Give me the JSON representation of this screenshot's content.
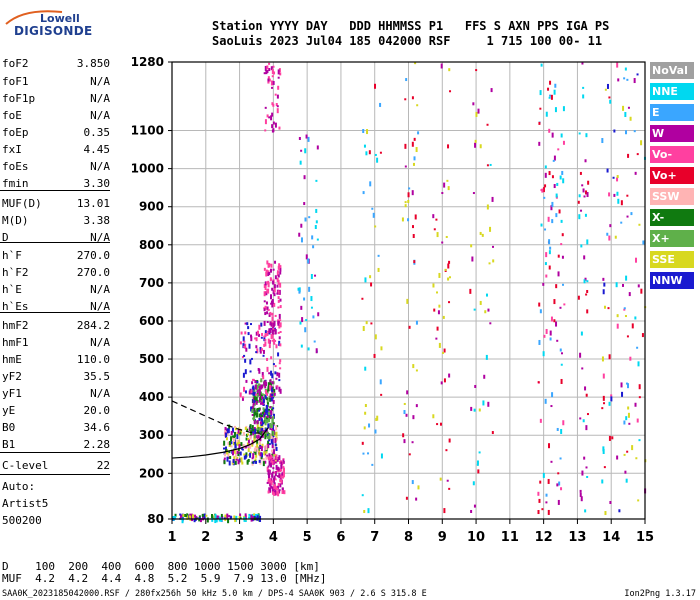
{
  "logo": {
    "top": "Lowell",
    "bottom": "DIGISONDE"
  },
  "header": {
    "line1": "Station YYYY DAY   DDD HHMMSS P1   FFS S AXN PPS IGA PS",
    "line2": "SaoLuis 2023 Jul04 185 042000 RSF     1 715 100 00- 11"
  },
  "params": [
    {
      "k": "foF2",
      "v": "3.850"
    },
    {
      "k": "foF1",
      "v": "N/A"
    },
    {
      "k": "foF1p",
      "v": "N/A"
    },
    {
      "k": "foE",
      "v": "N/A"
    },
    {
      "k": "foEp",
      "v": "0.35"
    },
    {
      "k": "fxI",
      "v": "4.45"
    },
    {
      "k": "foEs",
      "v": "N/A"
    },
    {
      "k": "fmin",
      "v": "3.30"
    },
    {
      "k": "MUF(D)",
      "v": "13.01"
    },
    {
      "k": "M(D)",
      "v": "3.38"
    },
    {
      "k": "D",
      "v": "N/A"
    },
    {
      "k": "h`F",
      "v": "270.0"
    },
    {
      "k": "h`F2",
      "v": "270.0"
    },
    {
      "k": "h`E",
      "v": "N/A"
    },
    {
      "k": "h`Es",
      "v": "N/A"
    },
    {
      "k": "hmF2",
      "v": "284.2"
    },
    {
      "k": "hmF1",
      "v": "N/A"
    },
    {
      "k": "hmE",
      "v": "110.0"
    },
    {
      "k": "yF2",
      "v": "35.5"
    },
    {
      "k": "yF1",
      "v": "N/A"
    },
    {
      "k": "yE",
      "v": "20.0"
    },
    {
      "k": "B0",
      "v": "34.6"
    },
    {
      "k": "B1",
      "v": "2.28"
    },
    {
      "k": "C-level",
      "v": "22"
    }
  ],
  "auto": {
    "line1": "Auto:",
    "line2": "Artist5",
    "line3": "500200"
  },
  "legend": [
    {
      "label": "NoVal",
      "color": "#a0a0a0"
    },
    {
      "label": "NNE",
      "color": "#00d8f0"
    },
    {
      "label": "E",
      "color": "#3aa6ff"
    },
    {
      "label": "W",
      "color": "#b000a0"
    },
    {
      "label": "Vo-",
      "color": "#ff40a0"
    },
    {
      "label": "Vo+",
      "color": "#e8002a"
    },
    {
      "label": "SSW",
      "color": "#ffb4b4"
    },
    {
      "label": "X-",
      "color": "#107a10"
    },
    {
      "label": "X+",
      "color": "#5fb04a"
    },
    {
      "label": "SSE",
      "color": "#d8d820"
    },
    {
      "label": "NNW",
      "color": "#1a1ad0"
    }
  ],
  "mufTable": {
    "dRow": "D    100  200  400  600  800 1000 1500 3000 [km]",
    "mufRow": "MUF  4.2  4.2  4.4  4.8  5.2  5.9  7.9 13.0 [MHz]"
  },
  "footer": {
    "left": "SAA0K_2023185042000.RSF / 280fx256h 50 kHz 5.0 km / DPS-4 SAA0K 903 / 2.6 S 315.8 E",
    "right": "Ion2Png 1.3.17"
  },
  "chart_data": {
    "type": "scatter",
    "title": "",
    "xlabel": "",
    "ylabel": "",
    "xlim": [
      1,
      15
    ],
    "ylim": [
      80,
      1280
    ],
    "x_ticks": [
      1,
      2,
      3,
      4,
      5,
      6,
      7,
      8,
      9,
      10,
      11,
      12,
      13,
      14,
      15
    ],
    "y_ticks": [
      80,
      200,
      300,
      400,
      500,
      600,
      700,
      800,
      900,
      1000,
      1100,
      1280
    ],
    "grid": true,
    "traces": [
      {
        "name": "",
        "style": "solid",
        "color": "#000000",
        "x": [
          1.0,
          1.5,
          2.0,
          2.5,
          3.0,
          3.3,
          3.6,
          3.85
        ],
        "y": [
          240,
          243,
          248,
          255,
          265,
          275,
          290,
          320
        ]
      },
      {
        "name": "",
        "style": "dashed",
        "color": "#000000",
        "x": [
          1.0,
          1.5,
          2.0,
          2.5,
          3.0,
          3.3,
          3.6
        ],
        "y": [
          390,
          370,
          350,
          330,
          315,
          308,
          305
        ]
      }
    ],
    "echo_clusters": [
      {
        "x": [
          2.5,
          4.1
        ],
        "y": [
          230,
          330
        ],
        "density": "high",
        "colors": [
          "#b000a0",
          "#1a1ad0",
          "#ffb4b4",
          "#d8d820",
          "#107a10"
        ]
      },
      {
        "x": [
          3.3,
          4.0
        ],
        "y": [
          300,
          450
        ],
        "density": "high",
        "colors": [
          "#b000a0",
          "#1a1ad0",
          "#107a10",
          "#5fb04a"
        ]
      },
      {
        "x": [
          3.0,
          4.2
        ],
        "y": [
          400,
          600
        ],
        "density": "medium",
        "colors": [
          "#b000a0",
          "#1a1ad0",
          "#ff40a0"
        ]
      },
      {
        "x": [
          3.7,
          4.2
        ],
        "y": [
          540,
          760
        ],
        "density": "medium",
        "colors": [
          "#b000a0",
          "#ff40a0"
        ]
      },
      {
        "x": [
          3.7,
          4.2
        ],
        "y": [
          1100,
          1280
        ],
        "density": "low",
        "colors": [
          "#b000a0",
          "#ff40a0"
        ]
      },
      {
        "x": [
          3.8,
          4.3
        ],
        "y": [
          150,
          250
        ],
        "density": "medium",
        "colors": [
          "#b000a0",
          "#ff40a0"
        ]
      },
      {
        "x": [
          4.7,
          5.3
        ],
        "y": [
          500,
          1100
        ],
        "density": "low",
        "colors": [
          "#b000a0",
          "#00d8f0",
          "#3aa6ff"
        ]
      },
      {
        "x": [
          6.6,
          7.2
        ],
        "y": [
          100,
          1280
        ],
        "density": "low",
        "colors": [
          "#d8d820",
          "#00d8f0",
          "#3aa6ff",
          "#e8002a"
        ]
      },
      {
        "x": [
          7.8,
          8.3
        ],
        "y": [
          100,
          1280
        ],
        "density": "low",
        "colors": [
          "#d8d820",
          "#b000a0",
          "#3aa6ff",
          "#e8002a"
        ]
      },
      {
        "x": [
          8.7,
          9.2
        ],
        "y": [
          100,
          1280
        ],
        "density": "low",
        "colors": [
          "#d8d820",
          "#b000a0",
          "#e8002a"
        ]
      },
      {
        "x": [
          9.8,
          10.5
        ],
        "y": [
          100,
          1280
        ],
        "density": "low",
        "colors": [
          "#d8d820",
          "#b000a0",
          "#00d8f0",
          "#e8002a"
        ]
      },
      {
        "x": [
          11.8,
          12.6
        ],
        "y": [
          100,
          1280
        ],
        "density": "medium",
        "colors": [
          "#00d8f0",
          "#3aa6ff",
          "#b000a0",
          "#ff40a0",
          "#e8002a"
        ]
      },
      {
        "x": [
          13.0,
          13.3
        ],
        "y": [
          100,
          1280
        ],
        "density": "low",
        "colors": [
          "#00d8f0",
          "#b000a0",
          "#e8002a"
        ]
      },
      {
        "x": [
          13.7,
          15.0
        ],
        "y": [
          100,
          1280
        ],
        "density": "medium",
        "colors": [
          "#00d8f0",
          "#3aa6ff",
          "#b000a0",
          "#1a1ad0",
          "#e8002a",
          "#ff40a0",
          "#d8d820"
        ]
      },
      {
        "x": [
          1.0,
          3.6
        ],
        "y": [
          82,
          95
        ],
        "density": "medium",
        "colors": [
          "#1a1ad0",
          "#00d8f0",
          "#d8d820",
          "#b000a0",
          "#107a10"
        ]
      }
    ]
  }
}
